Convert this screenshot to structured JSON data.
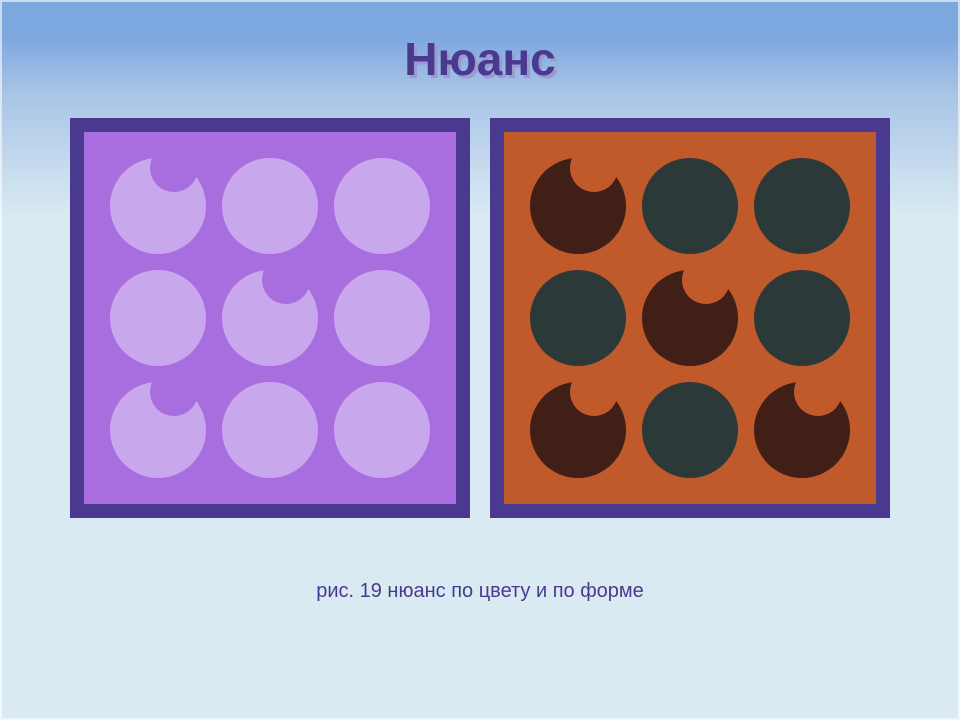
{
  "title": "Нюанс",
  "caption": "рис. 19 нюанс по  цвету и по форме",
  "colors": {
    "sky_top": "#7da7df",
    "sky_mid": "#a9c4e6",
    "panel_bg": "#d9eaf2",
    "title": "#4a3a8f",
    "title_shadow": "#9a9ad0",
    "caption": "#4a3a8f",
    "border": "#4a3a8f"
  },
  "typography": {
    "title_fontsize": 46,
    "caption_fontsize": 20
  },
  "layout": {
    "panel_size": 400,
    "border_width": 14,
    "dot_diameter": 96,
    "notch_diameter": 48
  },
  "panels": [
    {
      "id": "left",
      "background": "#a86ee0",
      "shapes": [
        {
          "row": 0,
          "col": 0,
          "fill": "#c8a7ec",
          "notched": true
        },
        {
          "row": 0,
          "col": 1,
          "fill": "#c8a7ec",
          "notched": false
        },
        {
          "row": 0,
          "col": 2,
          "fill": "#c8a7ec",
          "notched": false
        },
        {
          "row": 1,
          "col": 0,
          "fill": "#c8a7ec",
          "notched": false
        },
        {
          "row": 1,
          "col": 1,
          "fill": "#c8a7ec",
          "notched": true
        },
        {
          "row": 1,
          "col": 2,
          "fill": "#c8a7ec",
          "notched": false
        },
        {
          "row": 2,
          "col": 0,
          "fill": "#c8a7ec",
          "notched": true
        },
        {
          "row": 2,
          "col": 1,
          "fill": "#c8a7ec",
          "notched": false
        },
        {
          "row": 2,
          "col": 2,
          "fill": "#c8a7ec",
          "notched": false
        }
      ]
    },
    {
      "id": "right",
      "background": "#c15a2a",
      "shapes": [
        {
          "row": 0,
          "col": 0,
          "fill": "#3f1f16",
          "notched": true
        },
        {
          "row": 0,
          "col": 1,
          "fill": "#2b3a38",
          "notched": false
        },
        {
          "row": 0,
          "col": 2,
          "fill": "#2b3a38",
          "notched": false
        },
        {
          "row": 1,
          "col": 0,
          "fill": "#2b3a38",
          "notched": false
        },
        {
          "row": 1,
          "col": 1,
          "fill": "#3f1f16",
          "notched": true
        },
        {
          "row": 1,
          "col": 2,
          "fill": "#2b3a38",
          "notched": false
        },
        {
          "row": 2,
          "col": 0,
          "fill": "#3f1f16",
          "notched": true
        },
        {
          "row": 2,
          "col": 1,
          "fill": "#2b3a38",
          "notched": false
        },
        {
          "row": 2,
          "col": 2,
          "fill": "#3f1f16",
          "notched": true
        }
      ]
    }
  ]
}
